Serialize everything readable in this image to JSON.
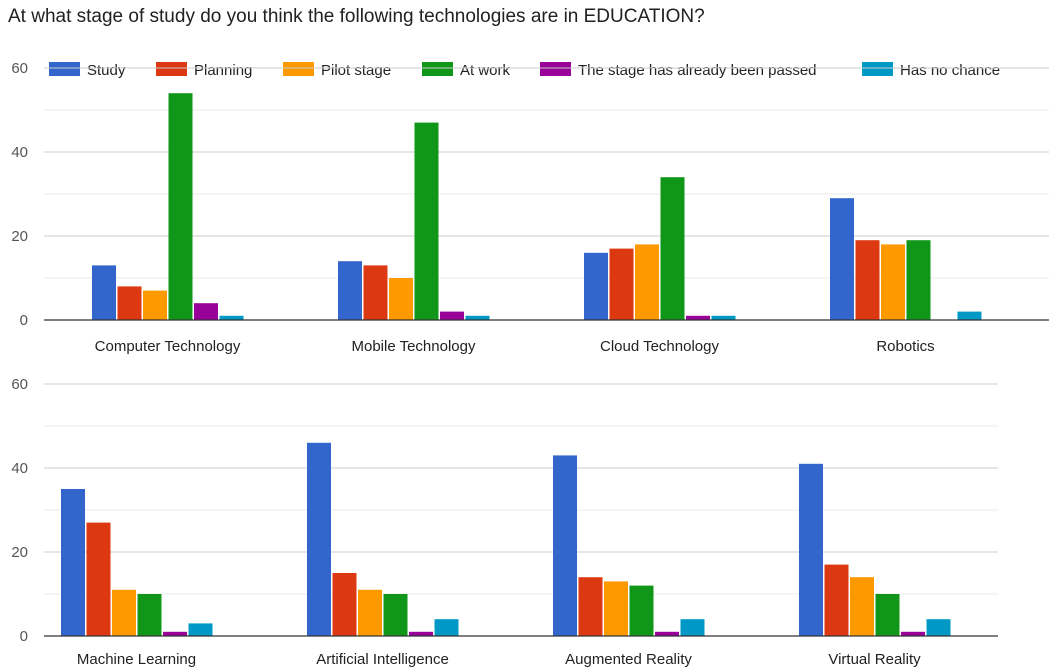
{
  "title": "At what stage of study do you think the following technologies are in EDUCATION?",
  "chart_data": {
    "type": "bar",
    "title": "At what stage of study do you think the following technologies are in EDUCATION?",
    "ylim": [
      0,
      60
    ],
    "yticks": [
      0,
      20,
      40,
      60
    ],
    "grid": true,
    "legend_position": "top",
    "series": [
      {
        "name": "Study",
        "color": "#3366cc"
      },
      {
        "name": "Planning",
        "color": "#dc3912"
      },
      {
        "name": "Pilot stage",
        "color": "#ff9900"
      },
      {
        "name": "At work",
        "color": "#109618"
      },
      {
        "name": "The stage has already been passed",
        "color": "#990099"
      },
      {
        "name": "Has no chance",
        "color": "#0099c6"
      }
    ],
    "panels": [
      {
        "categories": [
          "Computer Technology",
          "Mobile Technology",
          "Cloud Technology",
          "Robotics"
        ],
        "values": [
          [
            13,
            8,
            7,
            54,
            4,
            1
          ],
          [
            14,
            13,
            10,
            47,
            2,
            1
          ],
          [
            16,
            17,
            18,
            34,
            1,
            1
          ],
          [
            29,
            19,
            18,
            19,
            0,
            2
          ]
        ]
      },
      {
        "categories": [
          "Machine Learning",
          "Artificial Intelligence",
          "Augmented Reality",
          "Virtual Reality"
        ],
        "values": [
          [
            35,
            27,
            11,
            10,
            1,
            3
          ],
          [
            46,
            15,
            11,
            10,
            1,
            4
          ],
          [
            43,
            14,
            13,
            12,
            1,
            4
          ],
          [
            41,
            17,
            14,
            10,
            1,
            4
          ]
        ]
      }
    ]
  }
}
